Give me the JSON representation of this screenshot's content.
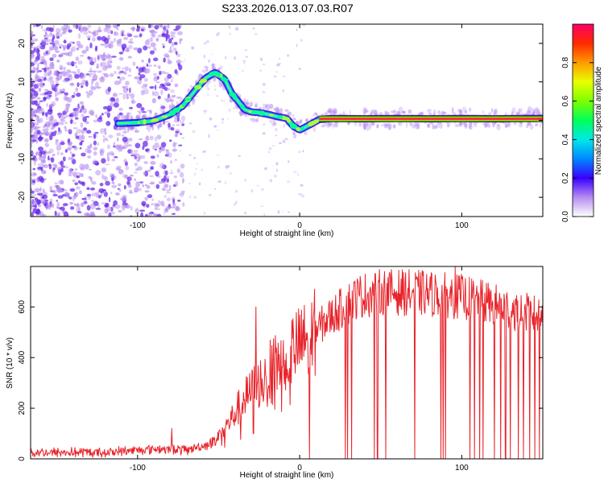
{
  "title": "S233.2026.013.07.03.R07",
  "colors": {
    "snr_line": "#e8232a",
    "axis": "#000000",
    "speckle": "#b58cf0",
    "speckle_strong": "#6a2be8"
  },
  "chart_data": [
    {
      "type": "heatmap",
      "xlabel": "Height of straight line (km)",
      "ylabel": "Frequency (Hz)",
      "xlim": [
        -166,
        150
      ],
      "ylim": [
        -25,
        25
      ],
      "xticks": [
        -100,
        0,
        100
      ],
      "yticks": [
        -20,
        -10,
        0,
        10,
        20
      ],
      "xtick_labels": [
        "-100",
        "0",
        "100"
      ],
      "ytick_labels": [
        "-20",
        "-10",
        "0",
        "10",
        "20"
      ],
      "grid": false,
      "ridge": {
        "x": [
          -112,
          -100,
          -90,
          -80,
          -72,
          -65,
          -58,
          -52,
          -46,
          -42,
          -38,
          -34,
          -30,
          -25,
          -20,
          -14,
          -8,
          -4,
          0,
          6,
          12,
          20,
          40,
          60,
          80,
          100,
          120,
          140,
          150
        ],
        "y": [
          -0.8,
          -0.6,
          -0.1,
          1.5,
          3.8,
          7.5,
          11.0,
          12.5,
          10.5,
          7.0,
          5.0,
          2.8,
          2.2,
          2.0,
          1.6,
          1.0,
          0.5,
          -1.5,
          -2.5,
          -1.2,
          0.2,
          0.5,
          0.4,
          0.5,
          0.4,
          0.5,
          0.4,
          0.5,
          0.5
        ]
      },
      "colorbar": {
        "label": "Normalized spectral amplitude",
        "range": [
          0,
          1
        ],
        "ticks": [
          0.0,
          0.2,
          0.4,
          0.6,
          0.8
        ],
        "tick_labels": [
          "0.0",
          "0.2",
          "0.4",
          "0.6",
          "0.8"
        ]
      }
    },
    {
      "type": "line",
      "xlabel": "Height of straight line (km)",
      "ylabel": "SNR (10 * v/v)",
      "xlim": [
        -166,
        150
      ],
      "ylim": [
        0,
        760
      ],
      "xticks": [
        -100,
        0,
        100
      ],
      "yticks": [
        0,
        200,
        400,
        600
      ],
      "xtick_labels": [
        "-100",
        "0",
        "100"
      ],
      "ytick_labels": [
        "0",
        "200",
        "400",
        "600"
      ],
      "grid": false,
      "envelope": {
        "x": [
          -166,
          -120,
          -90,
          -70,
          -55,
          -45,
          -35,
          -25,
          -15,
          -5,
          5,
          15,
          25,
          35,
          50,
          75,
          100,
          125,
          150
        ],
        "y": [
          25,
          25,
          40,
          35,
          60,
          130,
          230,
          300,
          370,
          430,
          470,
          540,
          590,
          640,
          660,
          655,
          640,
          600,
          560
        ]
      },
      "spikes_up": [
        {
          "x": -79,
          "y": 120
        },
        {
          "x": -27,
          "y": 600
        },
        {
          "x": 96,
          "y": 760
        }
      ],
      "dropouts_x": [
        6,
        28,
        29.5,
        32,
        46,
        48,
        53,
        71,
        87,
        88.5,
        90,
        105,
        108,
        111,
        113,
        120,
        124,
        127,
        130,
        135,
        138,
        142,
        145,
        148
      ]
    }
  ]
}
